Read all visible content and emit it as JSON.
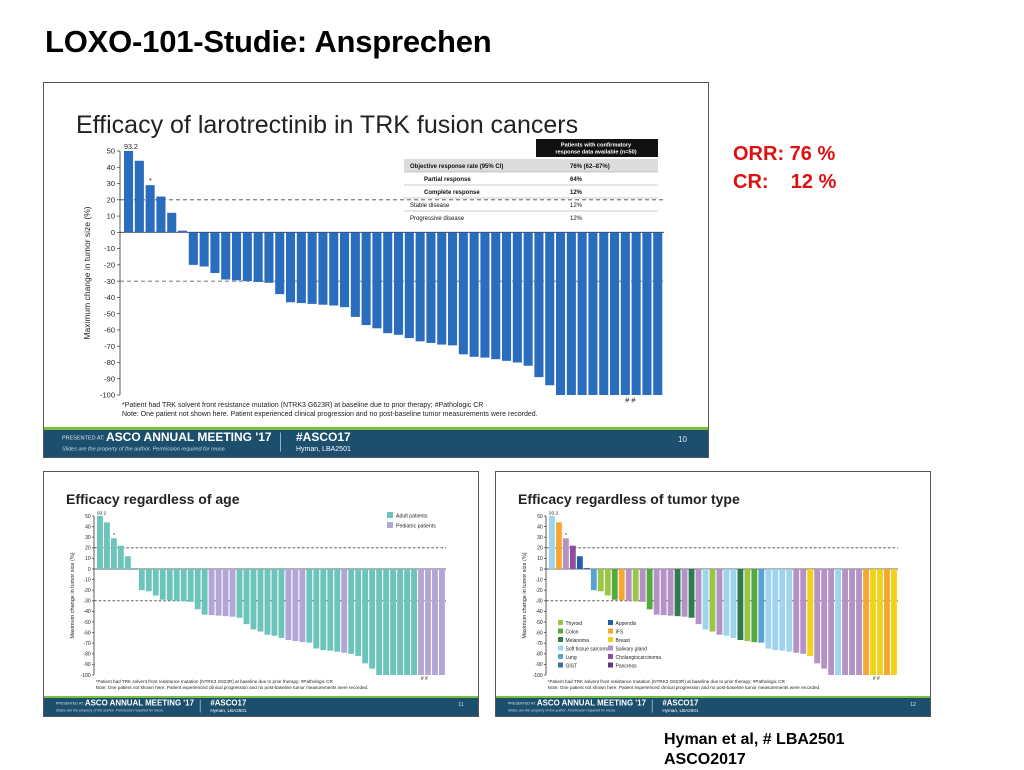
{
  "page": {
    "title": "LOXO-101-Studie: Ansprechen",
    "orr_line": "ORR: 76 %",
    "cr_line": "CR:    12 %",
    "citation_line1": "Hyman et al, # LBA2501",
    "citation_line2": "ASCO2017"
  },
  "colors": {
    "main_bar": "#2a6cbd",
    "adult": "#6cc4ba",
    "pediatric": "#b3a6d6",
    "footer_bg": "#1c4f6e",
    "footer_accent": "#79c043",
    "orr_red": "#e01010"
  },
  "footer": {
    "presented_at": "PRESENTED AT:",
    "meeting": "ASCO ANNUAL MEETING '17",
    "hashtag": "#ASCO17",
    "slides_note": "Slides are the property of the author. Permission required for reuse.",
    "presenter": "Hyman, LBA2501"
  },
  "chart_data": [
    {
      "type": "bar",
      "title": "Efficacy of larotrectinib in TRK fusion cancers",
      "ylabel": "Maximum change in tumor size (%)",
      "ylim": [
        -100,
        50
      ],
      "yticks": [
        50,
        40,
        30,
        20,
        10,
        0,
        -10,
        -20,
        -30,
        -40,
        -50,
        -60,
        -70,
        -80,
        -90,
        -100
      ],
      "reference_lines": [
        20,
        -30
      ],
      "top_label": "93.2",
      "values": [
        50,
        44,
        29,
        22,
        12,
        1,
        -20,
        -21,
        -25,
        -29,
        -29.5,
        -30,
        -30.5,
        -31,
        -38,
        -43,
        -43.5,
        -44,
        -44.5,
        -45,
        -46,
        -52,
        -57,
        -59,
        -62,
        -63,
        -65,
        -67,
        -68,
        -69,
        -69.5,
        -75,
        -76.5,
        -77,
        -78,
        -79,
        -80,
        -82,
        -89,
        -94,
        -100,
        -100,
        -100,
        -100,
        -100,
        -100,
        -100,
        -100,
        -100,
        -100
      ],
      "table": {
        "header": "Patients with confirmatory response data available (n=50)",
        "rows": [
          {
            "label": "Objective response rate (95% CI)",
            "value": "76% (62–87%)",
            "bold": true
          },
          {
            "label": "Partial response",
            "value": "64%",
            "bold": true
          },
          {
            "label": "Complete response",
            "value": "12%",
            "bold": true
          },
          {
            "label": "Stable disease",
            "value": "12%",
            "bold": false
          },
          {
            "label": "Progressive disease",
            "value": "12%",
            "bold": false
          }
        ]
      },
      "footnote1": "*Patient had TRK solvent front resistance mutation (NTRK3 G623R) at baseline due to prior therapy; #Pathologic CR",
      "footnote2": "Note: One patient not shown here. Patient experienced clinical progression and no post-baseline tumor measurements were recorded.",
      "slide_number": "10",
      "hash_marks": "#  #",
      "asterisk": "*"
    },
    {
      "type": "bar",
      "title": "Efficacy regardless of age",
      "ylabel": "Maximum change in tumor size (%)",
      "ylim": [
        -100,
        50
      ],
      "reference_lines": [
        20,
        -30
      ],
      "top_label": "93.2",
      "legend": [
        "Adult patients",
        "Pediatric patients"
      ],
      "groups": [
        "A",
        "A",
        "A",
        "A",
        "A",
        "A",
        "A",
        "A",
        "A",
        "A",
        "A",
        "A",
        "A",
        "A",
        "A",
        "A",
        "P",
        "P",
        "P",
        "P",
        "A",
        "A",
        "A",
        "A",
        "A",
        "A",
        "A",
        "P",
        "P",
        "P",
        "A",
        "A",
        "A",
        "A",
        "A",
        "P",
        "A",
        "A",
        "A",
        "A",
        "A",
        "A",
        "A",
        "A",
        "A",
        "A",
        "P",
        "P",
        "P",
        "P"
      ],
      "footnote1": "*Patient had TRK solvent front resistance mutation (NTRK3 G623R) at baseline due to prior therapy; #Pathologic CR",
      "footnote2": "Note: One patient not shown here. Patient experienced clinical progression and no post-baseline tumor measurements were recorded.",
      "slide_number": "11"
    },
    {
      "type": "bar",
      "title": "Efficacy regardless of tumor type",
      "ylabel": "Maximum change in tumor size (%)",
      "ylim": [
        -100,
        50
      ],
      "reference_lines": [
        20,
        -30
      ],
      "top_label": "93.2",
      "legend": [
        {
          "name": "Thyroid",
          "color": "#9ac547"
        },
        {
          "name": "Colon",
          "color": "#55a93e"
        },
        {
          "name": "Melanoma",
          "color": "#2f7a52"
        },
        {
          "name": "Soft tissue sarcoma",
          "color": "#9fd4ee"
        },
        {
          "name": "Lung",
          "color": "#59a3d4"
        },
        {
          "name": "GIST",
          "color": "#3d6fa5"
        },
        {
          "name": "Appendix",
          "color": "#1f60a8"
        },
        {
          "name": "IFS",
          "color": "#f7a731"
        },
        {
          "name": "Breast",
          "color": "#f2d216"
        },
        {
          "name": "Salivary gland",
          "color": "#b592c6"
        },
        {
          "name": "Cholangiocarcinoma",
          "color": "#8f4f9a"
        },
        {
          "name": "Pancreas",
          "color": "#5a3a7a"
        }
      ],
      "groups": [
        "Soft tissue sarcoma",
        "IFS",
        "Salivary gland",
        "Cholangiocarcinoma",
        "Appendix",
        "GIST",
        "Lung",
        "Thyroid",
        "Thyroid",
        "Colon",
        "IFS",
        "Salivary gland",
        "Thyroid",
        "Salivary gland",
        "Colon",
        "Salivary gland",
        "Salivary gland",
        "Salivary gland",
        "Melanoma",
        "Salivary gland",
        "Melanoma",
        "Salivary gland",
        "Soft tissue sarcoma",
        "Thyroid",
        "Salivary gland",
        "Soft tissue sarcoma",
        "Soft tissue sarcoma",
        "Melanoma",
        "Thyroid",
        "Colon",
        "Lung",
        "Soft tissue sarcoma",
        "Soft tissue sarcoma",
        "Soft tissue sarcoma",
        "Soft tissue sarcoma",
        "Salivary gland",
        "Salivary gland",
        "Breast",
        "Salivary gland",
        "Salivary gland",
        "Salivary gland",
        "Soft tissue sarcoma",
        "Salivary gland",
        "Salivary gland",
        "Salivary gland",
        "IFS",
        "Breast",
        "Breast",
        "IFS",
        "Breast"
      ],
      "footnote1": "*Patient had TRK solvent front resistance mutation (NTRK3 G623R) at baseline due to prior therapy; #Pathologic CR",
      "footnote2": "Note: One patient not shown here. Patient experienced clinical progression and no post-baseline tumor measurements were recorded.",
      "slide_number": "12"
    }
  ]
}
